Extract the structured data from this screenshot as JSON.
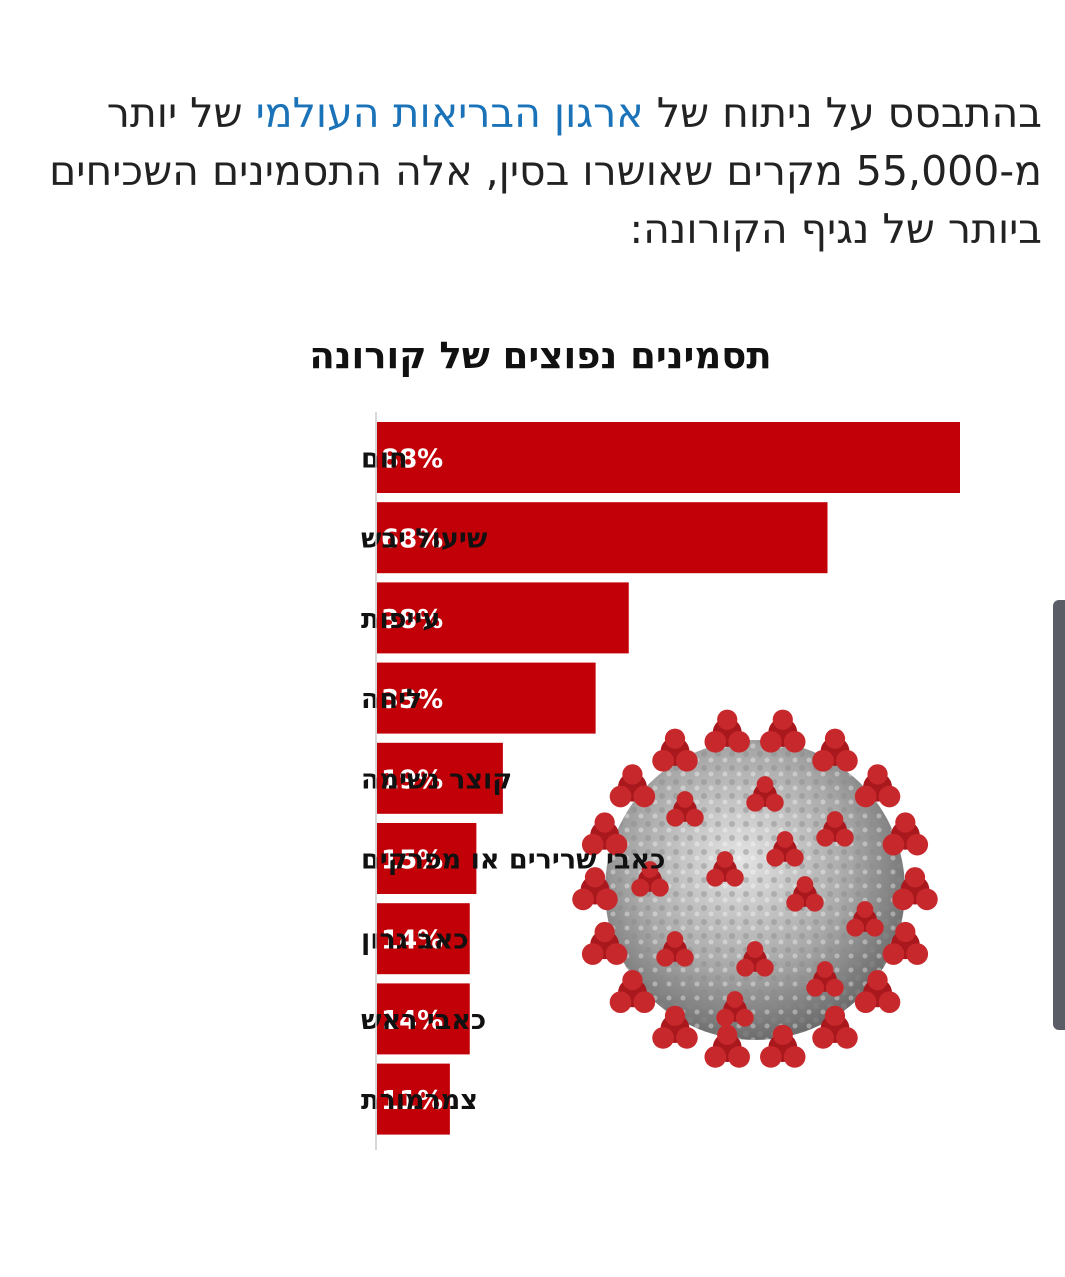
{
  "intro": {
    "part1": "בהתבסס על ניתוח של ",
    "link": "ארגון הבריאות העולמי",
    "part2": " של יותר מ-55,000 מקרים שאושרו בסין, אלה התסמינים השכיחים ביותר של נגיף הקורונה:"
  },
  "colors": {
    "bar": "#c10007",
    "link": "#1a73b8",
    "axis": "#cccccc"
  },
  "chart_data": {
    "type": "bar",
    "orientation": "horizontal",
    "title": "תסמינים נפוצים של קורונה",
    "xlabel": "",
    "ylabel": "",
    "xlim": [
      0,
      100
    ],
    "grid": false,
    "categories": [
      "חום",
      "שיעול יבש",
      "עייפות",
      "ליחה",
      "קוצר נשימה",
      "כאבי שרירים או מפרקים",
      "כאב גרון",
      "כאבי ראש",
      "צמרמורת"
    ],
    "values": [
      88,
      68,
      38,
      33,
      19,
      15,
      14,
      14,
      11
    ],
    "value_labels": [
      "88%",
      "68%",
      "38%",
      "33%",
      "19%",
      "15%",
      "14%",
      "14%",
      "11%"
    ]
  },
  "image": {
    "icon": "coronavirus-icon"
  }
}
